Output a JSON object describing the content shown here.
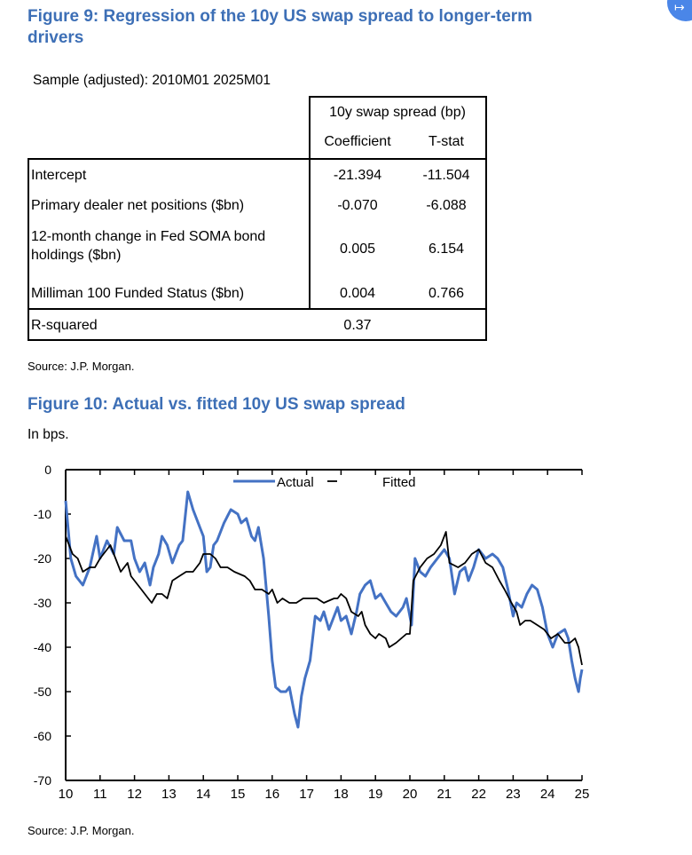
{
  "fig9": {
    "title_line1": "Figure 9: Regression of the 10y US swap spread to longer-term",
    "title_line2": "drivers",
    "sample": "Sample (adjusted): 2010M01 2025M01",
    "header_group": "10y swap spread (bp)",
    "col_coef": "Coefficient",
    "col_tstat": "T-stat",
    "rows": [
      {
        "label": "Intercept",
        "coef": "-21.394",
        "tstat": "-11.504"
      },
      {
        "label": "Primary dealer net positions ($bn)",
        "coef": "-0.070",
        "tstat": "-6.088"
      },
      {
        "label_line1": "12-month change in Fed SOMA bond",
        "label_line2": "holdings ($bn)",
        "coef": "0.005",
        "tstat": "6.154"
      },
      {
        "label": "Milliman 100 Funded Status ($bn)",
        "coef": "0.004",
        "tstat": "0.766"
      }
    ],
    "rsq_label": "R-squared",
    "rsq_value": "0.37",
    "source": "Source: J.P. Morgan."
  },
  "fig10": {
    "title": "Figure 10: Actual vs. fitted 10y US swap spread",
    "units": "In bps.",
    "source": "Source: J.P. Morgan."
  },
  "chart_data": {
    "type": "line",
    "title": "Figure 10: Actual vs. fitted 10y US swap spread",
    "ylabel": "In bps.",
    "xlim": [
      10,
      25
    ],
    "ylim": [
      -70,
      0
    ],
    "yticks": [
      "0",
      "-10",
      "-20",
      "-30",
      "-40",
      "-50",
      "-60",
      "-70"
    ],
    "xticks": [
      "10",
      "11",
      "12",
      "13",
      "14",
      "15",
      "16",
      "17",
      "18",
      "19",
      "20",
      "21",
      "22",
      "23",
      "24",
      "25"
    ],
    "legend": "top-center",
    "colors": {
      "Actual": "#4472c4",
      "Fitted": "#000000"
    },
    "series": [
      {
        "name": "Actual",
        "points": [
          [
            10.0,
            -7
          ],
          [
            10.15,
            -20
          ],
          [
            10.3,
            -24
          ],
          [
            10.5,
            -26
          ],
          [
            10.7,
            -22
          ],
          [
            10.9,
            -15
          ],
          [
            11.0,
            -20
          ],
          [
            11.2,
            -16
          ],
          [
            11.4,
            -19
          ],
          [
            11.5,
            -13
          ],
          [
            11.7,
            -16
          ],
          [
            11.9,
            -16
          ],
          [
            12.0,
            -20
          ],
          [
            12.15,
            -23
          ],
          [
            12.3,
            -21
          ],
          [
            12.45,
            -26
          ],
          [
            12.55,
            -22
          ],
          [
            12.7,
            -19
          ],
          [
            12.8,
            -15
          ],
          [
            12.95,
            -17
          ],
          [
            13.1,
            -21
          ],
          [
            13.3,
            -17
          ],
          [
            13.4,
            -16
          ],
          [
            13.55,
            -5
          ],
          [
            13.7,
            -9
          ],
          [
            13.9,
            -13
          ],
          [
            14.0,
            -15
          ],
          [
            14.1,
            -23
          ],
          [
            14.2,
            -22
          ],
          [
            14.3,
            -17
          ],
          [
            14.4,
            -16
          ],
          [
            14.6,
            -12
          ],
          [
            14.8,
            -9
          ],
          [
            15.0,
            -10
          ],
          [
            15.1,
            -12
          ],
          [
            15.25,
            -11
          ],
          [
            15.4,
            -15
          ],
          [
            15.5,
            -16
          ],
          [
            15.6,
            -13
          ],
          [
            15.75,
            -20
          ],
          [
            15.9,
            -33
          ],
          [
            16.0,
            -43
          ],
          [
            16.1,
            -49
          ],
          [
            16.25,
            -50
          ],
          [
            16.4,
            -50
          ],
          [
            16.5,
            -49
          ],
          [
            16.65,
            -55
          ],
          [
            16.75,
            -58
          ],
          [
            16.85,
            -51
          ],
          [
            16.95,
            -47
          ],
          [
            17.1,
            -43
          ],
          [
            17.25,
            -33
          ],
          [
            17.4,
            -34
          ],
          [
            17.5,
            -32
          ],
          [
            17.65,
            -36
          ],
          [
            17.8,
            -33
          ],
          [
            17.9,
            -31
          ],
          [
            18.0,
            -34
          ],
          [
            18.15,
            -33
          ],
          [
            18.3,
            -37
          ],
          [
            18.45,
            -32
          ],
          [
            18.55,
            -28
          ],
          [
            18.7,
            -26
          ],
          [
            18.85,
            -25
          ],
          [
            19.0,
            -29
          ],
          [
            19.15,
            -28
          ],
          [
            19.3,
            -30
          ],
          [
            19.45,
            -32
          ],
          [
            19.6,
            -33
          ],
          [
            19.8,
            -31
          ],
          [
            19.9,
            -29
          ],
          [
            20.05,
            -35
          ],
          [
            20.15,
            -20
          ],
          [
            20.3,
            -23
          ],
          [
            20.45,
            -24
          ],
          [
            20.6,
            -22
          ],
          [
            20.8,
            -20
          ],
          [
            21.0,
            -18
          ],
          [
            21.15,
            -20
          ],
          [
            21.3,
            -28
          ],
          [
            21.45,
            -23
          ],
          [
            21.6,
            -22
          ],
          [
            21.7,
            -25
          ],
          [
            21.85,
            -22
          ],
          [
            22.0,
            -18
          ],
          [
            22.2,
            -20
          ],
          [
            22.4,
            -19
          ],
          [
            22.55,
            -20
          ],
          [
            22.7,
            -22
          ],
          [
            22.85,
            -27
          ],
          [
            23.0,
            -33
          ],
          [
            23.1,
            -30
          ],
          [
            23.25,
            -31
          ],
          [
            23.4,
            -28
          ],
          [
            23.55,
            -26
          ],
          [
            23.7,
            -27
          ],
          [
            23.85,
            -31
          ],
          [
            24.0,
            -37
          ],
          [
            24.15,
            -40
          ],
          [
            24.3,
            -37
          ],
          [
            24.5,
            -36
          ],
          [
            24.6,
            -38
          ],
          [
            24.7,
            -43
          ],
          [
            24.8,
            -47
          ],
          [
            24.9,
            -50
          ],
          [
            24.95,
            -47
          ],
          [
            25.0,
            -45
          ]
        ]
      },
      {
        "name": "Fitted",
        "points": [
          [
            10.0,
            -15
          ],
          [
            10.2,
            -19
          ],
          [
            10.35,
            -20
          ],
          [
            10.5,
            -23
          ],
          [
            10.7,
            -22
          ],
          [
            10.85,
            -22
          ],
          [
            11.0,
            -20
          ],
          [
            11.3,
            -17
          ],
          [
            11.4,
            -19
          ],
          [
            11.6,
            -23
          ],
          [
            11.8,
            -21
          ],
          [
            11.9,
            -24
          ],
          [
            12.0,
            -25
          ],
          [
            12.2,
            -27
          ],
          [
            12.4,
            -29
          ],
          [
            12.5,
            -30
          ],
          [
            12.65,
            -28
          ],
          [
            12.8,
            -28
          ],
          [
            12.95,
            -29
          ],
          [
            13.1,
            -25
          ],
          [
            13.3,
            -24
          ],
          [
            13.5,
            -23
          ],
          [
            13.7,
            -23
          ],
          [
            13.9,
            -21
          ],
          [
            14.0,
            -19
          ],
          [
            14.2,
            -19
          ],
          [
            14.35,
            -20
          ],
          [
            14.5,
            -22
          ],
          [
            14.7,
            -22
          ],
          [
            14.9,
            -23
          ],
          [
            15.2,
            -24
          ],
          [
            15.35,
            -25
          ],
          [
            15.5,
            -27
          ],
          [
            15.7,
            -27
          ],
          [
            15.9,
            -28
          ],
          [
            16.0,
            -27
          ],
          [
            16.15,
            -30
          ],
          [
            16.3,
            -29
          ],
          [
            16.5,
            -30
          ],
          [
            16.7,
            -30
          ],
          [
            16.9,
            -29
          ],
          [
            17.1,
            -29
          ],
          [
            17.3,
            -29
          ],
          [
            17.5,
            -30
          ],
          [
            17.8,
            -29
          ],
          [
            17.9,
            -29
          ],
          [
            18.0,
            -28
          ],
          [
            18.15,
            -29
          ],
          [
            18.3,
            -32
          ],
          [
            18.5,
            -33
          ],
          [
            18.6,
            -32
          ],
          [
            18.7,
            -35
          ],
          [
            18.85,
            -37
          ],
          [
            19.0,
            -38
          ],
          [
            19.1,
            -37
          ],
          [
            19.3,
            -38
          ],
          [
            19.4,
            -40
          ],
          [
            19.6,
            -39
          ],
          [
            19.75,
            -38
          ],
          [
            19.9,
            -37
          ],
          [
            20.0,
            -37
          ],
          [
            20.1,
            -25
          ],
          [
            20.3,
            -22
          ],
          [
            20.5,
            -20
          ],
          [
            20.7,
            -19
          ],
          [
            20.9,
            -17
          ],
          [
            21.05,
            -14
          ],
          [
            21.15,
            -21
          ],
          [
            21.4,
            -22
          ],
          [
            21.6,
            -21
          ],
          [
            21.8,
            -19
          ],
          [
            22.0,
            -18
          ],
          [
            22.2,
            -21
          ],
          [
            22.4,
            -22
          ],
          [
            22.6,
            -25
          ],
          [
            22.75,
            -27
          ],
          [
            22.95,
            -30
          ],
          [
            23.1,
            -32
          ],
          [
            23.2,
            -35
          ],
          [
            23.35,
            -34
          ],
          [
            23.5,
            -34
          ],
          [
            23.7,
            -35
          ],
          [
            23.9,
            -36
          ],
          [
            24.1,
            -38
          ],
          [
            24.3,
            -37
          ],
          [
            24.5,
            -39
          ],
          [
            24.65,
            -39
          ],
          [
            24.8,
            -38
          ],
          [
            24.9,
            -40
          ],
          [
            25.0,
            -44
          ]
        ]
      }
    ]
  }
}
